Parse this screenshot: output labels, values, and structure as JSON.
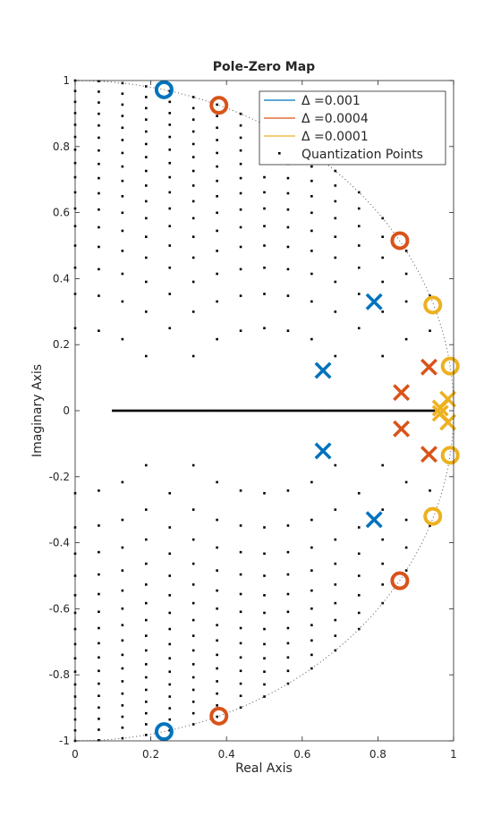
{
  "chart_data": {
    "type": "scatter",
    "title": "Pole-Zero Map",
    "xlabel": "Real Axis",
    "ylabel": "Imaginary Axis",
    "xlim": [
      0,
      1
    ],
    "ylim": [
      -1,
      1
    ],
    "xticks": [
      0,
      0.2,
      0.4,
      0.6,
      0.8,
      1
    ],
    "xtick_labels": [
      "0",
      "0.2",
      "0.4",
      "0.6",
      "0.8",
      "1"
    ],
    "yticks": [
      -1,
      -0.8,
      -0.6,
      -0.4,
      -0.2,
      0,
      0.2,
      0.4,
      0.6,
      0.8,
      1
    ],
    "ytick_labels": [
      "-1",
      "-0.8",
      "-0.6",
      "-0.4",
      "-0.2",
      "0",
      "0.2",
      "0.4",
      "0.6",
      "0.8",
      "1"
    ],
    "grid": false,
    "unit_circle": true,
    "legend_position": "top-right",
    "series": [
      {
        "name": "Δ =0.001",
        "color": "#0072BD",
        "zeros": [
          [
            0.235,
            0.972
          ],
          [
            0.235,
            -0.972
          ]
        ],
        "poles": [
          [
            0.655,
            0.122
          ],
          [
            0.655,
            -0.122
          ],
          [
            0.79,
            0.33
          ],
          [
            0.79,
            -0.33
          ]
        ]
      },
      {
        "name": "Δ =0.0004",
        "color": "#D95319",
        "zeros": [
          [
            0.38,
            0.925
          ],
          [
            0.38,
            -0.925
          ],
          [
            0.858,
            0.515
          ],
          [
            0.858,
            -0.515
          ]
        ],
        "poles": [
          [
            0.862,
            0.055
          ],
          [
            0.862,
            -0.055
          ],
          [
            0.935,
            0.132
          ],
          [
            0.935,
            -0.132
          ]
        ]
      },
      {
        "name": "Δ =0.0001",
        "color": "#EDB120",
        "zeros": [
          [
            0.945,
            0.32
          ],
          [
            0.945,
            -0.32
          ],
          [
            0.991,
            0.135
          ],
          [
            0.991,
            -0.135
          ]
        ],
        "poles": [
          [
            0.985,
            0.035
          ],
          [
            0.985,
            -0.035
          ],
          [
            0.965,
            0.008
          ],
          [
            0.965,
            -0.008
          ]
        ]
      }
    ],
    "quantization_points": {
      "name": "Quantization Points",
      "color": "#000000"
    }
  }
}
